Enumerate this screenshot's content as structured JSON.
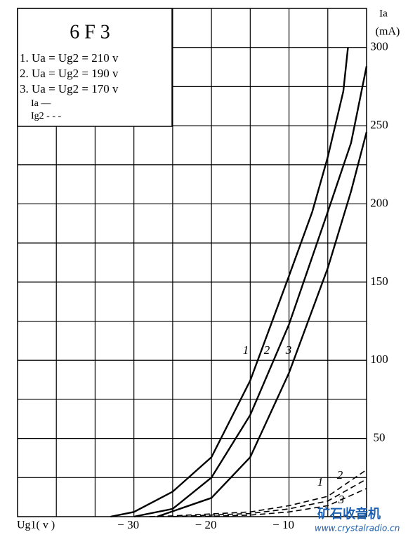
{
  "chart_data": {
    "type": "line",
    "title": "6 F 3",
    "legend_lines": [
      "1. Ua = Ug2 = 210 v",
      "2. Ua = Ug2 = 190 v",
      "3. Ua = Ug2 = 170 v"
    ],
    "style_legend": [
      {
        "label": "Ia —",
        "dash": false
      },
      {
        "label": "Ig2 - - -",
        "dash": true
      }
    ],
    "x_label": "Ug1( v )",
    "y_label": "Ia",
    "y_unit": "(mA)",
    "xlim": [
      -45,
      0
    ],
    "ylim": [
      0,
      325
    ],
    "xticks": [
      {
        "value": -30,
        "label": "− 30"
      },
      {
        "value": -20,
        "label": "− 20"
      },
      {
        "value": -10,
        "label": "− 10"
      }
    ],
    "yticks": [
      50,
      100,
      150,
      200,
      250,
      300
    ],
    "xgrid": [
      -40,
      -35,
      -30,
      -25,
      -20,
      -15,
      -10,
      -5
    ],
    "ygrid": [
      25,
      50,
      75,
      100,
      125,
      150,
      175,
      200,
      225,
      250,
      275,
      300
    ],
    "series": [
      {
        "color": "#000",
        "dash": false,
        "x": [
          -33,
          -30,
          -25,
          -20,
          -15,
          -10,
          -7,
          -5,
          -3,
          -2.4
        ],
        "values": [
          0,
          3,
          16,
          38,
          87,
          154,
          195,
          230,
          272,
          300
        ]
      },
      {
        "color": "#000",
        "dash": false,
        "x": [
          -30,
          -25,
          -20,
          -15,
          -10,
          -5,
          -2,
          0
        ],
        "values": [
          0,
          5,
          25,
          65,
          123,
          195,
          239,
          288
        ]
      },
      {
        "color": "#000",
        "dash": false,
        "x": [
          -27,
          -20,
          -15,
          -10,
          -5,
          -2,
          0
        ],
        "values": [
          0,
          12,
          38,
          92,
          159,
          208,
          246
        ]
      },
      {
        "color": "#000",
        "dash": true,
        "x": [
          -28,
          -25,
          -15,
          -10,
          -5,
          0
        ],
        "values": [
          0,
          0.5,
          3,
          7,
          13,
          30
        ]
      },
      {
        "color": "#000",
        "dash": true,
        "x": [
          -25,
          -15,
          -10,
          -5,
          0
        ],
        "values": [
          0,
          2,
          5,
          10,
          24
        ]
      },
      {
        "color": "#000",
        "dash": true,
        "x": [
          -22,
          -15,
          -10,
          -5,
          0
        ],
        "values": [
          0,
          1,
          3,
          7,
          18
        ]
      }
    ],
    "curve_labels": [
      "1",
      "2",
      "3",
      "1",
      "2",
      "3"
    ],
    "watermark": [
      "矿石收音机",
      "www.crystalradio.cn"
    ]
  }
}
